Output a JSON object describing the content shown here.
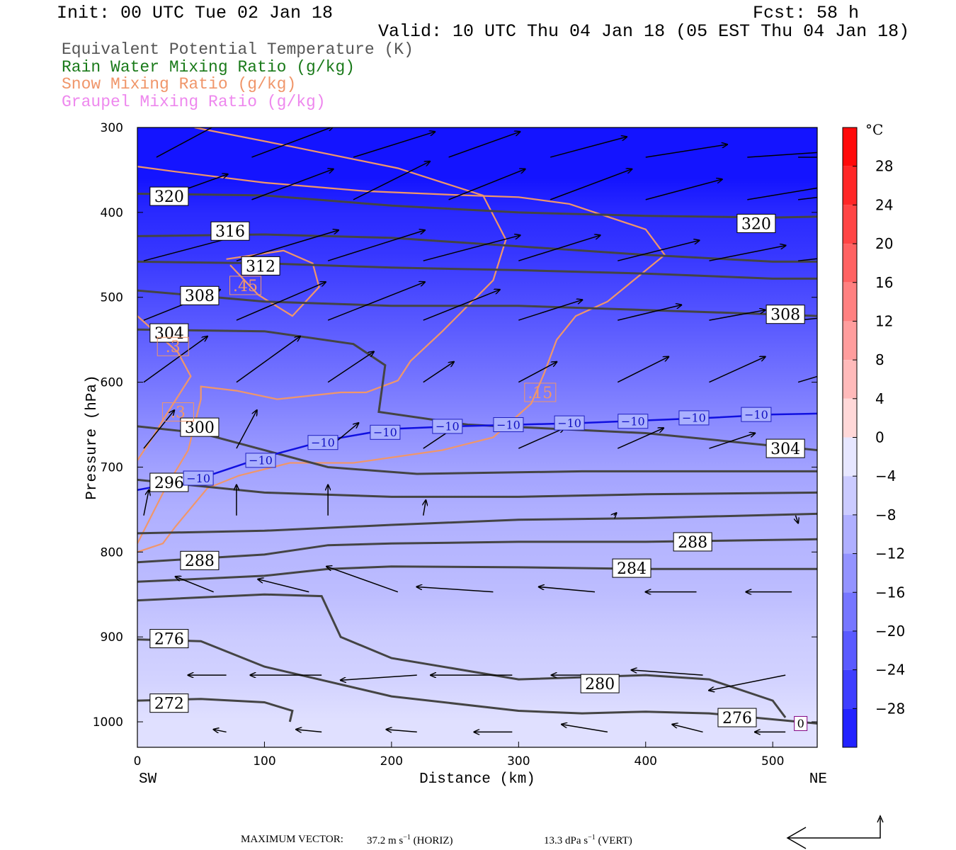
{
  "header": {
    "init": "Init: 00 UTC Tue 02 Jan 18",
    "fcst": "Fcst:   58 h",
    "valid": "Valid: 10 UTC Thu 04 Jan 18 (05 EST Thu 04 Jan 18)"
  },
  "legend": [
    {
      "label": "Equivalent Potential Temperature (K)",
      "color": "#555555"
    },
    {
      "label": "Rain Water Mixing Ratio (g/kg)",
      "color": "#1a7a1a"
    },
    {
      "label": "Snow Mixing Ratio (g/kg)",
      "color": "#f0966a"
    },
    {
      "label": "Graupel Mixing Ratio (g/kg)",
      "color": "#ee88ee"
    }
  ],
  "chart_data": {
    "type": "cross-section contour",
    "xlabel": "Distance (km)",
    "ylabel": "Pressure (hPa)",
    "xlim": [
      0,
      535
    ],
    "ylim": [
      1030,
      300
    ],
    "x_ticks": [
      "0",
      "100",
      "200",
      "300",
      "400",
      "500"
    ],
    "y_ticks": [
      "300",
      "400",
      "500",
      "600",
      "700",
      "800",
      "900",
      "1000"
    ],
    "left_end_label": "SW",
    "right_end_label": "NE",
    "colorbar": {
      "unit": "°C",
      "ticks": [
        "28",
        "24",
        "20",
        "16",
        "12",
        "8",
        "4",
        "0",
        "−4",
        "−8",
        "−12",
        "−16",
        "−20",
        "−24",
        "−28"
      ],
      "range": [
        -32,
        32
      ]
    },
    "theta_e_contours": [
      {
        "value": 320,
        "x": [
          0,
          100,
          200,
          300,
          400,
          500,
          535
        ],
        "p": [
          378,
          380,
          392,
          400,
          404,
          406,
          405
        ]
      },
      {
        "value": 316,
        "x": [
          0,
          100,
          200,
          300,
          400,
          500,
          535
        ],
        "p": [
          428,
          426,
          430,
          440,
          450,
          458,
          458
        ]
      },
      {
        "value": 312,
        "x": [
          0,
          100,
          200,
          300,
          400,
          500,
          535
        ],
        "p": [
          458,
          460,
          465,
          468,
          472,
          478,
          478
        ]
      },
      {
        "value": 308,
        "x": [
          0,
          100,
          200,
          300,
          400,
          500,
          535
        ],
        "p": [
          492,
          505,
          510,
          510,
          515,
          520,
          522
        ]
      },
      {
        "value": 304,
        "x": [
          0,
          100,
          170,
          195,
          190,
          260,
          400,
          535
        ],
        "p": [
          538,
          540,
          555,
          580,
          635,
          650,
          660,
          680
        ]
      },
      {
        "value": 300,
        "x": [
          0,
          50,
          150,
          220,
          350,
          535
        ],
        "p": [
          652,
          660,
          700,
          708,
          705,
          705
        ]
      },
      {
        "value": 296,
        "x": [
          0,
          100,
          200,
          300,
          400,
          535
        ],
        "p": [
          715,
          730,
          735,
          735,
          732,
          730
        ]
      },
      {
        "value": 292,
        "x": [
          0,
          100,
          200,
          300,
          400,
          535
        ],
        "p": [
          778,
          775,
          768,
          762,
          760,
          755
        ]
      },
      {
        "value": 288,
        "x": [
          0,
          100,
          150,
          200,
          300,
          400,
          535
        ],
        "p": [
          812,
          803,
          792,
          790,
          788,
          788,
          785
        ]
      },
      {
        "value": 284,
        "x": [
          0,
          100,
          150,
          200,
          300,
          400,
          535
        ],
        "p": [
          835,
          828,
          820,
          817,
          818,
          820,
          820
        ]
      },
      {
        "value": 280,
        "x": [
          0,
          100,
          145,
          160,
          200,
          300,
          400,
          450,
          500,
          510
        ],
        "p": [
          857,
          850,
          852,
          900,
          925,
          950,
          945,
          950,
          975,
          995
        ]
      },
      {
        "value": 276,
        "x": [
          0,
          50,
          100,
          200,
          300,
          350,
          400,
          450,
          535
        ],
        "p": [
          903,
          905,
          935,
          970,
          987,
          990,
          988,
          990,
          1002
        ]
      },
      {
        "value": 272,
        "x": [
          0,
          50,
          100,
          122,
          120
        ],
        "p": [
          975,
          973,
          977,
          987,
          1000
        ]
      }
    ],
    "theta_e_labels": [
      {
        "text": "320",
        "x": 25,
        "p": 381
      },
      {
        "text": "316",
        "x": 73,
        "p": 422
      },
      {
        "text": "312",
        "x": 97,
        "p": 463
      },
      {
        "text": "308",
        "x": 49,
        "p": 498
      },
      {
        "text": "304",
        "x": 25,
        "p": 542
      },
      {
        "text": "300",
        "x": 49,
        "p": 653
      },
      {
        "text": "296",
        "x": 25,
        "p": 718
      },
      {
        "text": "288",
        "x": 49,
        "p": 810
      },
      {
        "text": "276",
        "x": 25,
        "p": 902
      },
      {
        "text": "272",
        "x": 25,
        "p": 978
      },
      {
        "text": "320",
        "x": 487,
        "p": 413
      },
      {
        "text": "308",
        "x": 510,
        "p": 520
      },
      {
        "text": "304",
        "x": 510,
        "p": 678
      },
      {
        "text": "288",
        "x": 437,
        "p": 788
      },
      {
        "text": "284",
        "x": 389,
        "p": 819
      },
      {
        "text": "280",
        "x": 364,
        "p": 955
      },
      {
        "text": "276",
        "x": 472,
        "p": 995
      }
    ],
    "isotherm_minus10": {
      "label": "−10",
      "x": [
        0,
        50,
        100,
        150,
        200,
        250,
        300,
        350,
        400,
        450,
        500,
        535
      ],
      "p": [
        727,
        713,
        688,
        668,
        655,
        652,
        650,
        648,
        645,
        642,
        638,
        637
      ],
      "label_x": [
        48,
        97,
        146,
        195,
        244,
        292,
        340,
        390,
        438,
        487
      ],
      "label_p": [
        713,
        692,
        671,
        659,
        652,
        650,
        648,
        646,
        642,
        638
      ]
    },
    "zero_label": {
      "text": "0",
      "x": 522,
      "p": 1002
    },
    "snow_contours": [
      {
        "value": ".15",
        "x": [
          45,
          120,
          205,
          272,
          290,
          280,
          240,
          215,
          205,
          180,
          160,
          110,
          78,
          50,
          50,
          40,
          22,
          0
        ],
        "p": [
          300,
          322,
          348,
          380,
          432,
          480,
          540,
          575,
          598,
          612,
          612,
          620,
          610,
          605,
          620,
          680,
          725,
          790
        ]
      },
      {
        "value": ".15",
        "x": [
          0,
          30,
          100,
          180,
          260,
          300,
          340,
          400,
          415,
          370,
          345,
          330,
          320,
          310,
          280,
          240,
          170,
          120,
          80,
          55,
          30,
          20,
          0
        ],
        "p": [
          346,
          352,
          365,
          375,
          380,
          382,
          390,
          420,
          450,
          505,
          522,
          550,
          590,
          625,
          665,
          680,
          695,
          695,
          710,
          725,
          770,
          790,
          800
        ]
      },
      {
        "value": ".3",
        "x": [
          0,
          32,
          42,
          22,
          12,
          0
        ],
        "p": [
          522,
          565,
          593,
          640,
          665,
          692
        ]
      },
      {
        "value": ".45",
        "x": [
          70,
          115,
          138,
          143,
          122,
          95,
          73
        ],
        "p": [
          455,
          445,
          460,
          488,
          522,
          497,
          462
        ]
      }
    ],
    "snow_labels": [
      {
        "text": ".3",
        "x": 28,
        "p": 558
      },
      {
        "text": ".3",
        "x": 32,
        "p": 635
      },
      {
        "text": ".45",
        "x": 85,
        "p": 486
      },
      {
        "text": ".15",
        "x": 317,
        "p": 612
      }
    ],
    "wind_vectors": {
      "note": "vectors in distance-pressure space",
      "rows": [
        {
          "p": 335,
          "x": [
            15,
            90,
            170,
            245,
            325,
            400,
            480,
            520
          ],
          "u": [
            28,
            32,
            32,
            28,
            30,
            32,
            30,
            28
          ],
          "v": [
            -15,
            -12,
            -10,
            -10,
            -8,
            -5,
            -2,
            0
          ]
        },
        {
          "p": 385,
          "x": [
            15,
            90,
            170,
            245,
            325,
            400,
            480,
            520
          ],
          "u": [
            28,
            32,
            30,
            30,
            32,
            30,
            30,
            25
          ],
          "v": [
            -10,
            -12,
            -15,
            -12,
            -12,
            -8,
            -5,
            -3
          ]
        },
        {
          "p": 457,
          "x": [
            5,
            78,
            150,
            225,
            300,
            378,
            450,
            520
          ],
          "u": [
            38,
            40,
            38,
            38,
            32,
            32,
            30,
            28
          ],
          "v": [
            -10,
            -12,
            -12,
            -10,
            -10,
            -8,
            -6,
            -3
          ]
        },
        {
          "p": 527,
          "x": [
            5,
            78,
            150,
            225,
            300,
            378,
            450,
            520
          ],
          "u": [
            30,
            35,
            38,
            30,
            25,
            25,
            22,
            20
          ],
          "v": [
            -12,
            -15,
            -15,
            -12,
            -8,
            -6,
            -4,
            -2
          ]
        },
        {
          "p": 600,
          "x": [
            5,
            78,
            150,
            225,
            300,
            378,
            450,
            520
          ],
          "u": [
            25,
            25,
            18,
            12,
            15,
            20,
            22,
            10
          ],
          "v": [
            -18,
            -18,
            -12,
            -8,
            -8,
            -10,
            -10,
            -3
          ]
        },
        {
          "p": 678,
          "x": [
            5,
            78,
            150,
            225,
            300,
            378,
            450
          ],
          "u": [
            12,
            8,
            12,
            15,
            18,
            18,
            18
          ],
          "v": [
            -15,
            -15,
            -10,
            -10,
            -8,
            -8,
            -6
          ]
        },
        {
          "p": 757,
          "x": [
            5,
            78,
            150,
            225,
            375,
            518
          ],
          "u": [
            2,
            0,
            0,
            1,
            1,
            1
          ],
          "v": [
            -10,
            -12,
            -12,
            -6,
            -1,
            3
          ]
        },
        {
          "p": 847,
          "x": [
            60,
            135,
            205,
            280,
            360,
            440,
            515
          ],
          "u": [
            -15,
            -20,
            -28,
            -30,
            -22,
            -20,
            -18
          ],
          "v": [
            -6,
            -5,
            -10,
            -2,
            -2,
            0,
            0
          ]
        },
        {
          "p": 945,
          "x": [
            70,
            145,
            220,
            295,
            370,
            445,
            510
          ],
          "u": [
            -15,
            -28,
            -30,
            -32,
            -22,
            -28,
            -30
          ],
          "v": [
            0,
            0,
            2,
            0,
            0,
            -2,
            6
          ]
        },
        {
          "p": 1012,
          "x": [
            70,
            145,
            220,
            295,
            370,
            445,
            510
          ],
          "u": [
            -5,
            -10,
            -12,
            -15,
            -18,
            -12,
            -12
          ],
          "v": [
            -1,
            -1,
            -1,
            0,
            -3,
            -3,
            0
          ]
        }
      ]
    },
    "temperature_shading": {
      "rows": [
        {
          "p": 300,
          "t": -32
        },
        {
          "p": 360,
          "t": -32
        },
        {
          "p": 400,
          "t": -29
        },
        {
          "p": 450,
          "t": -27
        },
        {
          "p": 500,
          "t": -24
        },
        {
          "p": 550,
          "t": -21
        },
        {
          "p": 600,
          "t": -18
        },
        {
          "p": 650,
          "t": -15
        },
        {
          "p": 700,
          "t": -12
        },
        {
          "p": 750,
          "t": -10
        },
        {
          "p": 800,
          "t": -9
        },
        {
          "p": 850,
          "t": -8
        },
        {
          "p": 900,
          "t": -6
        },
        {
          "p": 950,
          "t": -5
        },
        {
          "p": 1000,
          "t": -3
        }
      ]
    }
  },
  "footer": {
    "max_vector_label": "MAXIMUM VECTOR:",
    "horiz": "37.2 m s",
    "horiz_unit": "(HORIZ)",
    "vert": "13.3 dPa s",
    "vert_unit": "(VERT)",
    "exp": "−1"
  }
}
